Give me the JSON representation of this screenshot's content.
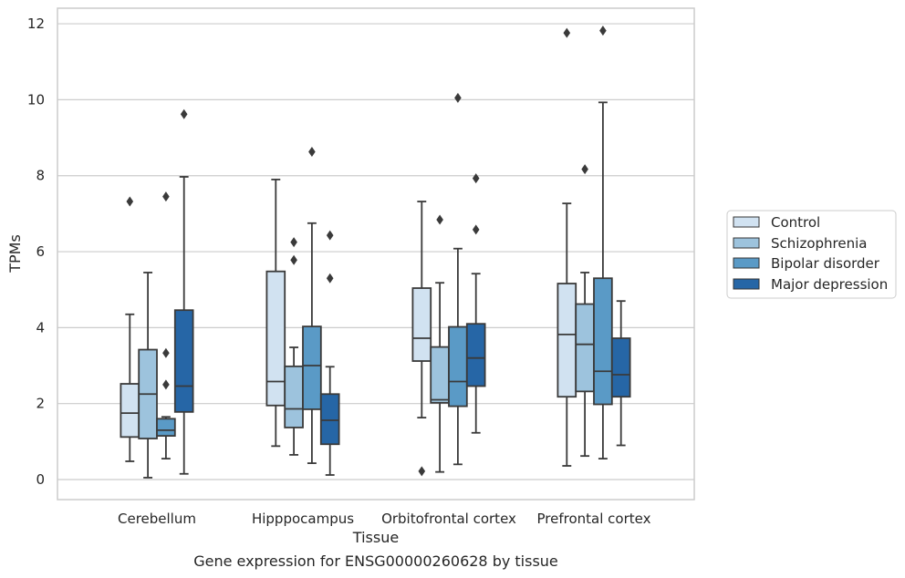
{
  "chart_data": {
    "type": "boxplot",
    "caption": "Gene expression for ENSG00000260628 by tissue",
    "xlabel": "Tissue",
    "ylabel": "TPMs",
    "ylim": [
      -0.5,
      12.4
    ],
    "yticks": [
      0,
      2,
      4,
      6,
      8,
      10,
      12
    ],
    "grid": true,
    "legend_position": "right",
    "categories": [
      "Cerebellum",
      "Hipppocampus",
      "Orbitofrontal cortex",
      "Prefrontal cortex"
    ],
    "series": [
      {
        "name": "Control",
        "color": "#d1e2f1",
        "boxes": [
          {
            "whislo": 0.48,
            "q1": 1.12,
            "med": 1.75,
            "q3": 2.52,
            "whishi": 4.35,
            "fliers": [
              7.32
            ]
          },
          {
            "whislo": 0.88,
            "q1": 1.95,
            "med": 2.58,
            "q3": 5.48,
            "whishi": 7.9,
            "fliers": []
          },
          {
            "whislo": 1.63,
            "q1": 3.12,
            "med": 3.72,
            "q3": 5.04,
            "whishi": 7.32,
            "fliers": [
              0.22
            ]
          },
          {
            "whislo": 0.36,
            "q1": 2.18,
            "med": 3.82,
            "q3": 5.16,
            "whishi": 7.27,
            "fliers": [
              11.76
            ]
          }
        ]
      },
      {
        "name": "Schizophrenia",
        "color": "#9dc3dd",
        "boxes": [
          {
            "whislo": 0.05,
            "q1": 1.08,
            "med": 2.25,
            "q3": 3.42,
            "whishi": 5.45,
            "fliers": []
          },
          {
            "whislo": 0.65,
            "q1": 1.37,
            "med": 1.86,
            "q3": 2.98,
            "whishi": 3.48,
            "fliers": [
              5.78,
              6.25
            ]
          },
          {
            "whislo": 0.2,
            "q1": 2.02,
            "med": 2.1,
            "q3": 3.49,
            "whishi": 5.18,
            "fliers": [
              6.84
            ]
          },
          {
            "whislo": 0.62,
            "q1": 2.32,
            "med": 3.56,
            "q3": 4.62,
            "whishi": 5.45,
            "fliers": [
              8.17
            ]
          }
        ]
      },
      {
        "name": "Bipolar disorder",
        "color": "#5a9ac6",
        "boxes": [
          {
            "whislo": 0.55,
            "q1": 1.15,
            "med": 1.3,
            "q3": 1.6,
            "whishi": 1.65,
            "fliers": [
              2.5,
              3.33,
              7.45
            ]
          },
          {
            "whislo": 0.43,
            "q1": 1.85,
            "med": 3.0,
            "q3": 4.03,
            "whishi": 6.75,
            "fliers": [
              8.63
            ]
          },
          {
            "whislo": 0.4,
            "q1": 1.93,
            "med": 2.58,
            "q3": 4.02,
            "whishi": 6.08,
            "fliers": [
              10.05
            ]
          },
          {
            "whislo": 0.55,
            "q1": 1.98,
            "med": 2.85,
            "q3": 5.3,
            "whishi": 9.93,
            "fliers": [
              11.82
            ]
          }
        ]
      },
      {
        "name": "Major depression",
        "color": "#2666a6",
        "boxes": [
          {
            "whislo": 0.15,
            "q1": 1.78,
            "med": 2.46,
            "q3": 4.46,
            "whishi": 7.97,
            "fliers": [
              9.62
            ]
          },
          {
            "whislo": 0.12,
            "q1": 0.93,
            "med": 1.56,
            "q3": 2.25,
            "whishi": 2.97,
            "fliers": [
              5.3,
              6.43
            ]
          },
          {
            "whislo": 1.23,
            "q1": 2.46,
            "med": 3.2,
            "q3": 4.1,
            "whishi": 5.42,
            "fliers": [
              6.58,
              7.93
            ]
          },
          {
            "whislo": 0.9,
            "q1": 2.18,
            "med": 2.76,
            "q3": 3.72,
            "whishi": 4.7,
            "fliers": []
          }
        ]
      }
    ]
  }
}
